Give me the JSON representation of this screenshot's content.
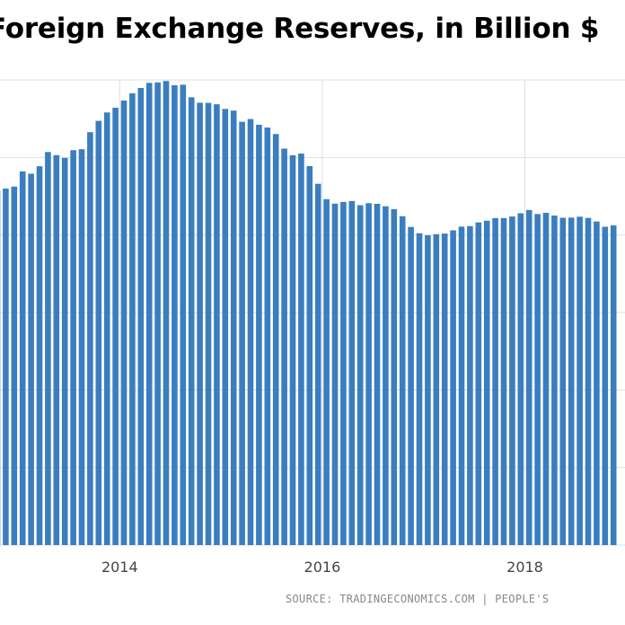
{
  "title": "Foreign Exchange Reserves, in Billion $",
  "source": "SOURCE:  TRADINGECONOMICS.COM  |  PEOPLE'S",
  "colors": {
    "bar": "#3a7ebf",
    "grid": "#dedede",
    "tick_text": "#444444"
  },
  "chart_data": {
    "type": "bar",
    "title": "Foreign Exchange Reserves, in Billion $",
    "xlabel": "",
    "ylabel": "",
    "x_ticks": [
      "2014",
      "2016",
      "2018"
    ],
    "grid": true,
    "categories": [
      "2012-10",
      "2012-11",
      "2012-12",
      "2013-01",
      "2013-02",
      "2013-03",
      "2013-04",
      "2013-05",
      "2013-06",
      "2013-07",
      "2013-08",
      "2013-09",
      "2013-10",
      "2013-11",
      "2013-12",
      "2014-01",
      "2014-02",
      "2014-03",
      "2014-04",
      "2014-05",
      "2014-06",
      "2014-07",
      "2014-08",
      "2014-09",
      "2014-10",
      "2014-11",
      "2014-12",
      "2015-01",
      "2015-02",
      "2015-03",
      "2015-04",
      "2015-05",
      "2015-06",
      "2015-07",
      "2015-08",
      "2015-09",
      "2015-10",
      "2015-11",
      "2015-12",
      "2016-01",
      "2016-02",
      "2016-03",
      "2016-04",
      "2016-05",
      "2016-06",
      "2016-07",
      "2016-08",
      "2016-09",
      "2016-10",
      "2016-11",
      "2016-12",
      "2017-01",
      "2017-02",
      "2017-03",
      "2017-04",
      "2017-05",
      "2017-06",
      "2017-07",
      "2017-08",
      "2017-09",
      "2017-10",
      "2017-11",
      "2017-12",
      "2018-01",
      "2018-02",
      "2018-03",
      "2018-04",
      "2018-05",
      "2018-06",
      "2018-07",
      "2018-08",
      "2018-09",
      "2018-10",
      "2018-11"
    ],
    "values": [
      3285,
      3299,
      3312,
      3410,
      3395,
      3443,
      3535,
      3515,
      3497,
      3547,
      3553,
      3663,
      3736,
      3790,
      3821,
      3867,
      3914,
      3948,
      3981,
      3984,
      3993,
      3966,
      3969,
      3888,
      3853,
      3852,
      3843,
      3813,
      3802,
      3730,
      3748,
      3711,
      3693,
      3651,
      3557,
      3514,
      3525,
      3444,
      3330,
      3231,
      3202,
      3213,
      3219,
      3192,
      3205,
      3201,
      3185,
      3166,
      3121,
      3052,
      3011,
      2998,
      3005,
      3009,
      3030,
      3054,
      3057,
      3081,
      3092,
      3109,
      3109,
      3119,
      3140,
      3161,
      3135,
      3143,
      3125,
      3111,
      3112,
      3118,
      3110,
      3087,
      3053,
      3062
    ],
    "ylim": [
      1000,
      4000
    ],
    "y_grid_values": [
      1000,
      1500,
      2000,
      2500,
      3000,
      3500,
      4000
    ]
  }
}
